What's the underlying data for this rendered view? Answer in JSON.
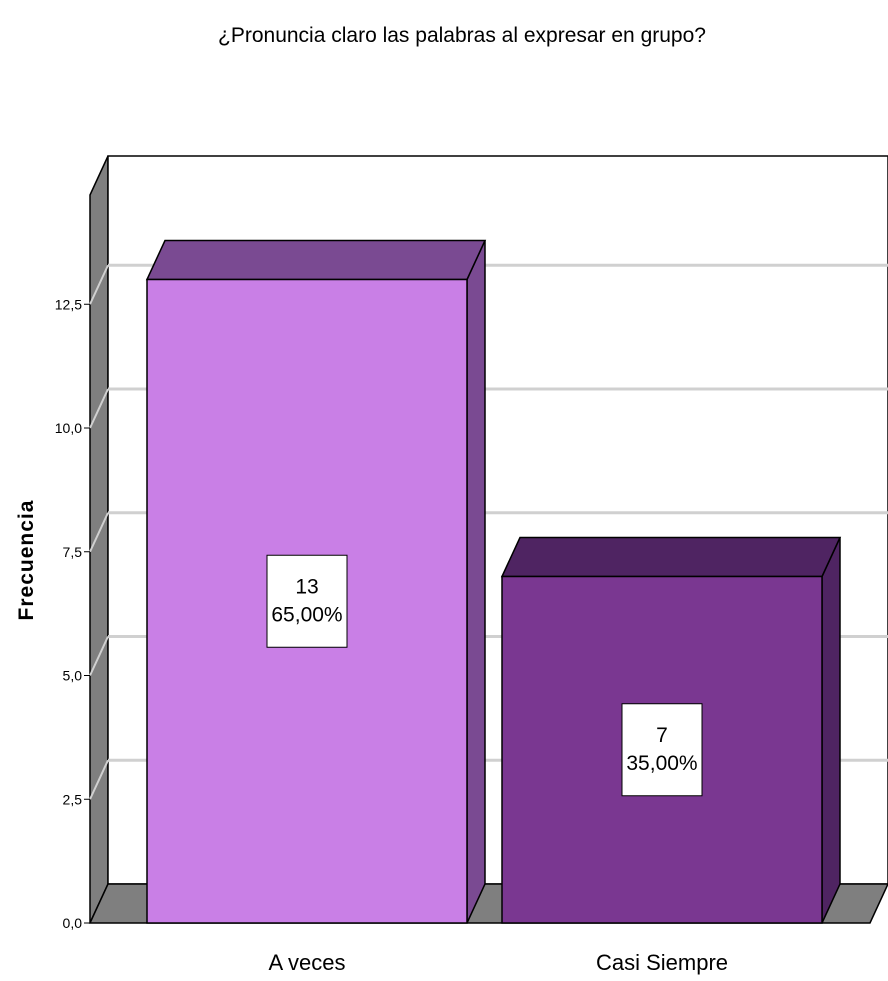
{
  "chart_data": {
    "type": "bar",
    "title": "¿Pronuncia claro las palabras al expresar en grupo?",
    "ylabel": "Frecuencia",
    "xlabel": "",
    "categories": [
      "A veces",
      "Casi Siempre"
    ],
    "values": [
      13,
      7
    ],
    "percent_labels": [
      "65,00%",
      "35,00%"
    ],
    "count_labels": [
      "13",
      "7"
    ],
    "bar_colors": [
      "#c97fe6",
      "#7a3791"
    ],
    "bar_side_colors": [
      "#7a4a92",
      "#4f2462"
    ],
    "bar_top_colors": [
      "#7a4a92",
      "#4f2462"
    ],
    "ylim": [
      0,
      15
    ],
    "yticks": [
      0,
      2.5,
      5,
      7.5,
      10,
      12.5
    ],
    "ytick_labels": [
      "0,0",
      "2,5",
      "5,0",
      "7,5",
      "10,0",
      "12,5"
    ],
    "grid": true,
    "style": "3d"
  }
}
